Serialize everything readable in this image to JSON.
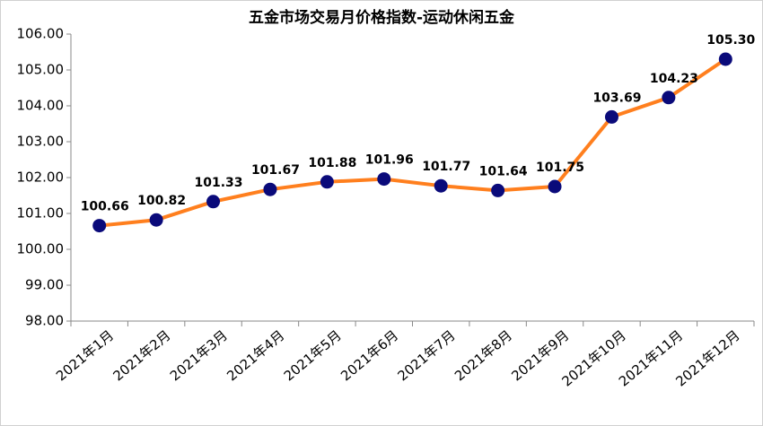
{
  "chart_data": {
    "type": "line",
    "title": "五金市场交易月价格指数-运动休闲五金",
    "categories": [
      "2021年1月",
      "2021年2月",
      "2021年3月",
      "2021年4月",
      "2021年5月",
      "2021年6月",
      "2021年7月",
      "2021年8月",
      "2021年9月",
      "2021年10月",
      "2021年11月",
      "2021年12月"
    ],
    "series": [
      {
        "name": "运动休闲五金",
        "color": "#ff7f1e",
        "marker_color": "#0a0a7a",
        "values": [
          100.66,
          100.82,
          101.33,
          101.67,
          101.88,
          101.96,
          101.77,
          101.64,
          101.75,
          103.69,
          104.23,
          105.3
        ],
        "value_labels": [
          "100.66",
          "100.82",
          "101.33",
          "101.67",
          "101.88",
          "101.96",
          "101.77",
          "101.64",
          "101.75",
          "103.69",
          "104.23",
          "105.30"
        ]
      }
    ],
    "ylim": [
      98,
      106
    ],
    "yticks": [
      {
        "value": 98,
        "label": "98.00"
      },
      {
        "value": 99,
        "label": "99.00"
      },
      {
        "value": 100,
        "label": "100.00"
      },
      {
        "value": 101,
        "label": "101.00"
      },
      {
        "value": 102,
        "label": "102.00"
      },
      {
        "value": 103,
        "label": "103.00"
      },
      {
        "value": 104,
        "label": "104.00"
      },
      {
        "value": 105,
        "label": "105.00"
      },
      {
        "value": 106,
        "label": "106.00"
      }
    ],
    "grid": false
  }
}
